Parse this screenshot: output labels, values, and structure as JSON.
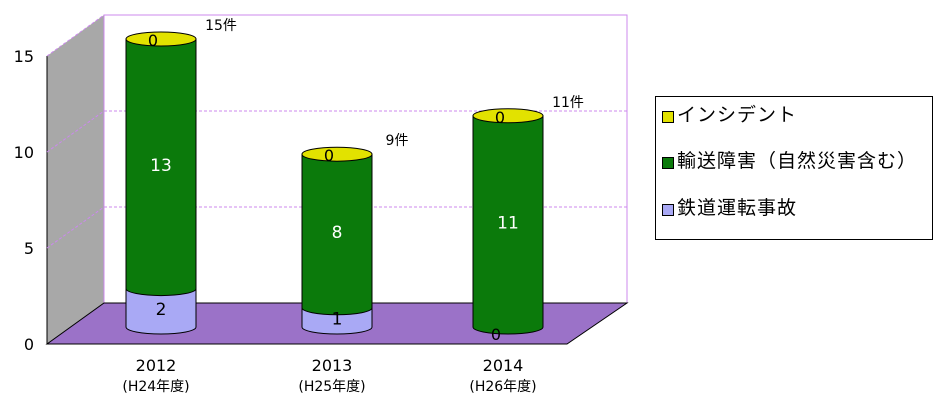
{
  "chart_data": {
    "type": "bar",
    "stacked": true,
    "style": "3d-cylinder",
    "categories": [
      "2012\n(H24年度)",
      "2013\n(H25年度)",
      "2014\n(H26年度)"
    ],
    "category_labels": [
      {
        "year": "2012",
        "era": "(H24年度)"
      },
      {
        "year": "2013",
        "era": "(H25年度)"
      },
      {
        "year": "2014",
        "era": "(H26年度)"
      }
    ],
    "series": [
      {
        "name": "鉄道運転事故",
        "values": [
          2,
          1,
          0
        ],
        "color": "#a9a9f5",
        "labels": [
          "2",
          "1",
          ""
        ]
      },
      {
        "name": "輸送障害（自然災害含む）",
        "values": [
          13,
          8,
          11
        ],
        "color": "#0b7a0b",
        "labels": [
          "13",
          "8",
          "11"
        ]
      },
      {
        "name": "インシデント",
        "values": [
          0,
          0,
          0
        ],
        "color": "#e2e200",
        "labels": [
          "0",
          "0",
          "0"
        ]
      }
    ],
    "totals": [
      "15件",
      "9件",
      "11件"
    ],
    "extra_zero_labels": [
      "0"
    ],
    "y_ticks": [
      "0",
      "5",
      "10",
      "15"
    ],
    "ylim": [
      0,
      16.5
    ],
    "grid": true,
    "legend_position": "right",
    "legend_order": [
      "インシデント",
      "輸送障害（自然災害含む）",
      "鉄道運転事故"
    ]
  },
  "colors": {
    "floor": "#9b72c8",
    "side_wall": "#a8a8a8",
    "gridline": "#cc88ee",
    "incident": "#e2e200",
    "transport": "#0b7a0b",
    "accident": "#a9a9f5"
  }
}
